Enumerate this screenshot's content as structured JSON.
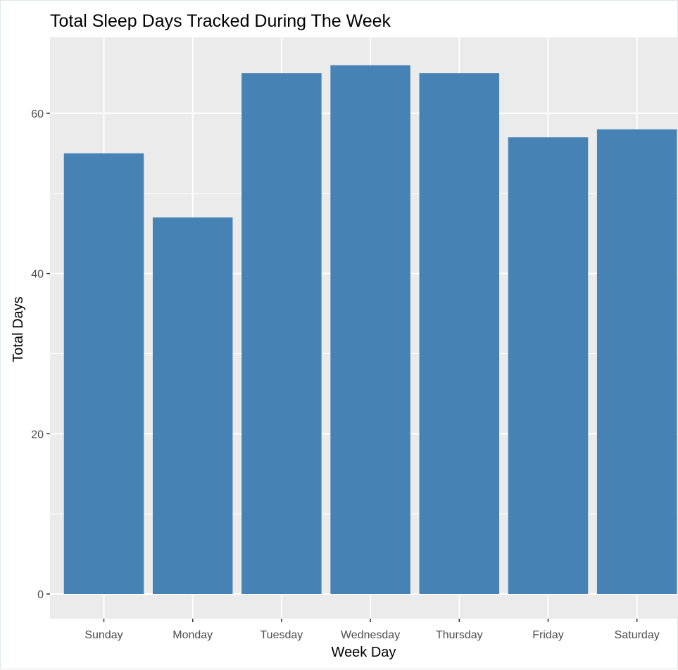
{
  "chart_data": {
    "type": "bar",
    "title": "Total Sleep Days Tracked During The Week",
    "xlabel": "Week Day",
    "ylabel": "Total Days",
    "categories": [
      "Sunday",
      "Monday",
      "Tuesday",
      "Wednesday",
      "Thursday",
      "Friday",
      "Saturday"
    ],
    "values": [
      55,
      47,
      65,
      66,
      65,
      57,
      58
    ],
    "ylim": [
      0,
      69
    ],
    "yticks": [
      0,
      20,
      40,
      60
    ],
    "grid": true,
    "legend": "none",
    "bar_color": "#4682b4",
    "panel_background": "#ebebeb",
    "grid_color": "#ffffff"
  }
}
